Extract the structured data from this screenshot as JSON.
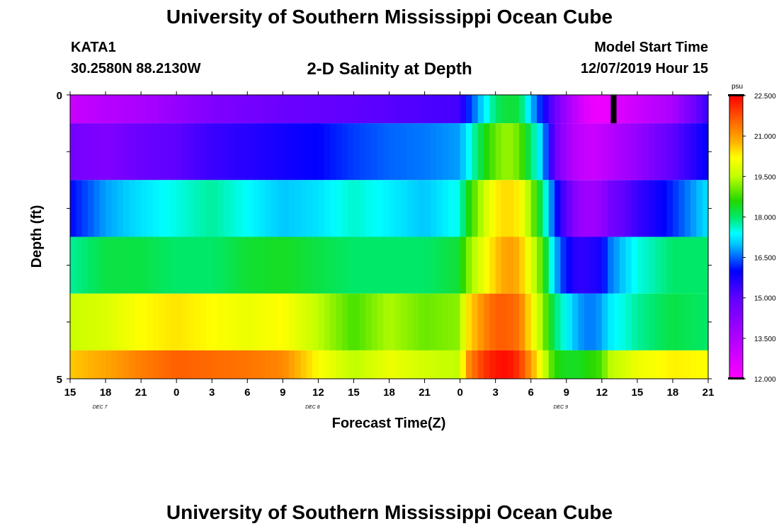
{
  "header": {
    "title_top": "University of Southern Mississippi Ocean Cube",
    "station": "KATA1",
    "coords": "30.2580N 88.2130W",
    "plot_title": "2-D Salinity at Depth",
    "model_start_label": "Model Start Time",
    "model_start_value": "12/07/2019 Hour 15",
    "title_bottom": "University of Southern Mississippi Ocean Cube"
  },
  "chart_data": {
    "type": "heatmap",
    "title": "2-D Salinity at Depth",
    "xlabel": "Forecast Time(Z)",
    "ylabel": "Depth (ft)",
    "x_tick_labels": [
      "15",
      "18",
      "21",
      "0",
      "3",
      "6",
      "9",
      "12",
      "15",
      "18",
      "21",
      "0",
      "3",
      "6",
      "9",
      "12",
      "15",
      "18",
      "21"
    ],
    "day_labels": [
      {
        "text": "DEC 7",
        "tick_index": 1
      },
      {
        "text": "DEC 8",
        "tick_index": 7
      },
      {
        "text": "DEC 9",
        "tick_index": 14
      }
    ],
    "y_tick_labels": [
      {
        "text": "0",
        "value": 0
      },
      {
        "text": "5",
        "value": 5
      }
    ],
    "y_range": [
      0,
      5
    ],
    "x_range_hours": [
      0,
      54
    ],
    "row_depths_ft": [
      0.25,
      1.0,
      2.0,
      3.0,
      4.0,
      4.75
    ],
    "row_edges_ft": [
      0,
      0.5,
      1.5,
      2.5,
      3.5,
      4.5,
      5
    ],
    "column_times_hours": [
      0,
      3,
      6,
      9,
      12,
      15,
      18,
      21,
      24,
      27,
      30,
      33,
      33.5,
      35,
      36,
      37,
      38,
      39,
      40,
      41,
      42,
      43,
      44,
      45,
      45.5,
      48,
      51,
      54
    ],
    "salinity": [
      [
        13.0,
        13.4,
        13.6,
        14.0,
        14.4,
        14.6,
        14.8,
        14.9,
        15.0,
        15.1,
        15.2,
        15.3,
        16.0,
        17.2,
        18.0,
        18.3,
        18.2,
        17.0,
        16.0,
        14.8,
        13.8,
        13.0,
        12.4,
        12.3,
        12.4,
        13.0,
        13.6,
        15.5
      ],
      [
        14.6,
        14.4,
        14.8,
        15.0,
        15.4,
        15.6,
        15.8,
        16.0,
        16.3,
        16.5,
        16.6,
        16.8,
        17.2,
        18.4,
        19.0,
        19.3,
        19.0,
        18.0,
        17.0,
        14.8,
        13.8,
        13.2,
        13.0,
        13.1,
        13.3,
        14.0,
        15.0,
        16.0
      ],
      [
        16.0,
        16.8,
        17.2,
        17.5,
        17.8,
        17.4,
        17.0,
        17.2,
        17.6,
        17.3,
        17.0,
        17.5,
        18.3,
        19.6,
        20.3,
        20.5,
        20.3,
        19.2,
        18.0,
        16.2,
        15.0,
        14.0,
        13.8,
        14.0,
        14.5,
        15.4,
        16.2,
        17.2
      ],
      [
        17.8,
        18.2,
        18.2,
        18.0,
        18.0,
        18.3,
        18.4,
        18.2,
        18.0,
        18.0,
        18.0,
        18.3,
        19.0,
        20.0,
        20.6,
        21.0,
        20.8,
        19.8,
        18.8,
        17.0,
        16.0,
        15.5,
        15.6,
        15.8,
        16.5,
        17.5,
        18.0,
        18.0
      ],
      [
        19.6,
        19.8,
        20.2,
        20.4,
        20.2,
        20.0,
        20.2,
        19.5,
        18.8,
        19.4,
        19.0,
        19.2,
        20.3,
        21.2,
        21.6,
        21.6,
        21.4,
        20.3,
        19.2,
        18.0,
        17.4,
        16.8,
        16.6,
        16.8,
        17.2,
        17.8,
        18.2,
        18.0
      ],
      [
        20.6,
        20.9,
        21.3,
        21.6,
        21.5,
        21.4,
        21.2,
        20.2,
        19.5,
        20.0,
        19.7,
        19.5,
        21.0,
        22.0,
        22.3,
        22.4,
        22.0,
        21.0,
        19.8,
        18.6,
        18.4,
        18.4,
        18.6,
        18.8,
        19.4,
        20.0,
        20.3,
        20.2
      ]
    ],
    "marker": {
      "time_hours": 46,
      "depth_from_ft": 0,
      "depth_to_ft": 0.5,
      "color": "#000000"
    },
    "colorbar": {
      "unit": "psu",
      "min": 12.0,
      "max": 22.5,
      "labels": [
        "22.500",
        "21.000",
        "19.500",
        "18.000",
        "16.500",
        "15.000",
        "13.500",
        "12.000"
      ],
      "label_values": [
        22.5,
        21.0,
        19.5,
        18.0,
        16.5,
        15.0,
        13.5,
        12.0
      ],
      "stops": [
        {
          "value": 12.0,
          "color": "#ff00ff"
        },
        {
          "value": 13.5,
          "color": "#b000ff"
        },
        {
          "value": 15.0,
          "color": "#6000ff"
        },
        {
          "value": 16.0,
          "color": "#0000ff"
        },
        {
          "value": 17.0,
          "color": "#00c8ff"
        },
        {
          "value": 17.4,
          "color": "#00ffff"
        },
        {
          "value": 18.0,
          "color": "#00e868"
        },
        {
          "value": 18.6,
          "color": "#22d800"
        },
        {
          "value": 19.5,
          "color": "#c0ff00"
        },
        {
          "value": 20.2,
          "color": "#ffff00"
        },
        {
          "value": 20.8,
          "color": "#ffb000"
        },
        {
          "value": 21.5,
          "color": "#ff6a00"
        },
        {
          "value": 22.5,
          "color": "#ff0000"
        }
      ]
    }
  }
}
